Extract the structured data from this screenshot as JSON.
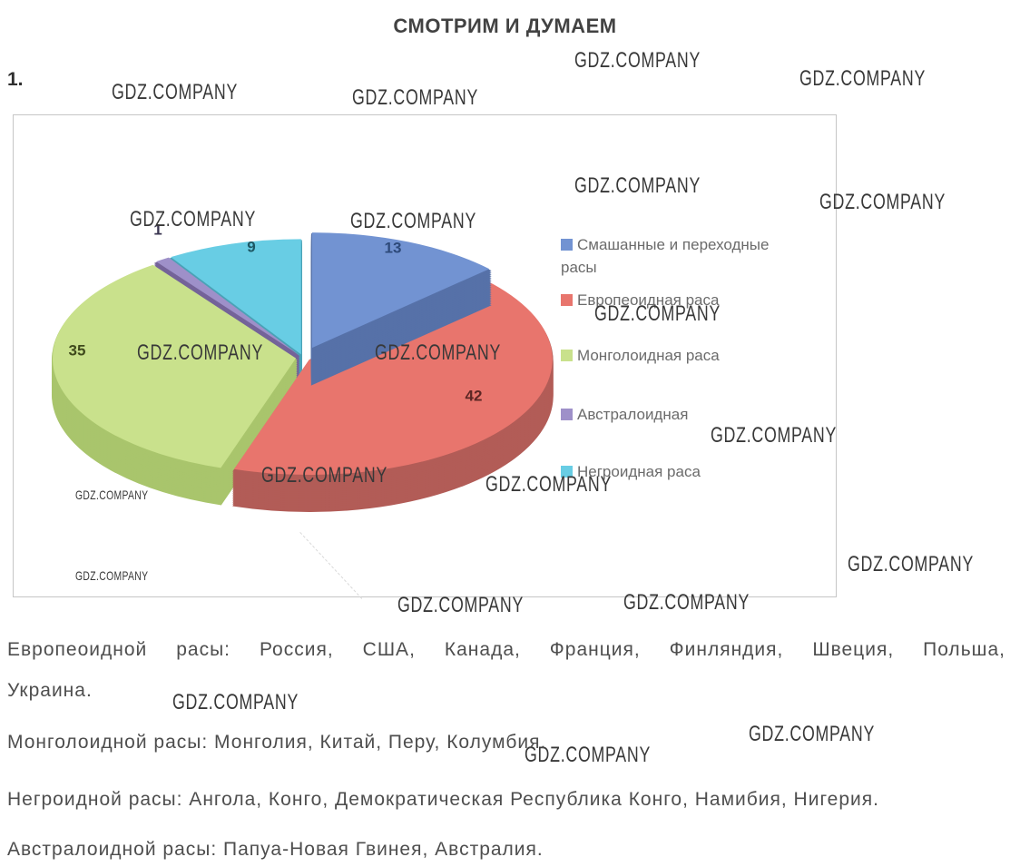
{
  "page": {
    "title": "СМОТРИМ И ДУМАЕМ",
    "exercise_number": "1.",
    "watermark_text": "GDZ.COMPANY"
  },
  "chart_data": {
    "type": "pie",
    "style": "3d-exploded",
    "title": "",
    "legend_position": "right",
    "slices": [
      {
        "label": "Смашанные и переходные расы",
        "value": 13,
        "color": "#7293d2",
        "side_color": "#5671a8",
        "label_color": "#2e4a7a"
      },
      {
        "label": "Европеоидная раса",
        "value": 42,
        "color": "#e8756d",
        "side_color": "#b25c57",
        "label_color": "#5c2624"
      },
      {
        "label": "Монголоидная раса",
        "value": 35,
        "color": "#c9e18c",
        "side_color": "#a9c56c",
        "label_color": "#3f4a1c"
      },
      {
        "label": "Австралоидная",
        "value": 1,
        "color": "#9e90c9",
        "side_color": "#746399",
        "label_color": "#3a3550"
      },
      {
        "label": "Негроидная раса",
        "value": 9,
        "color": "#68cde4",
        "side_color": "#4aa2b6",
        "label_color": "#1d5764"
      }
    ]
  },
  "notes": [
    "Европеоидной расы: Россия, США, Канада, Франция, Финляндия, Швеция, Польша, Украина.",
    "Монголоидной расы: Монголия, Китай, Перу, Колумбия.",
    "Негроидной расы: Ангола, Конго, Демократическая Республика Конго, Намибия, Нигерия.",
    "Австралоидной расы: Папуа-Новая Гвинея, Австралия."
  ]
}
